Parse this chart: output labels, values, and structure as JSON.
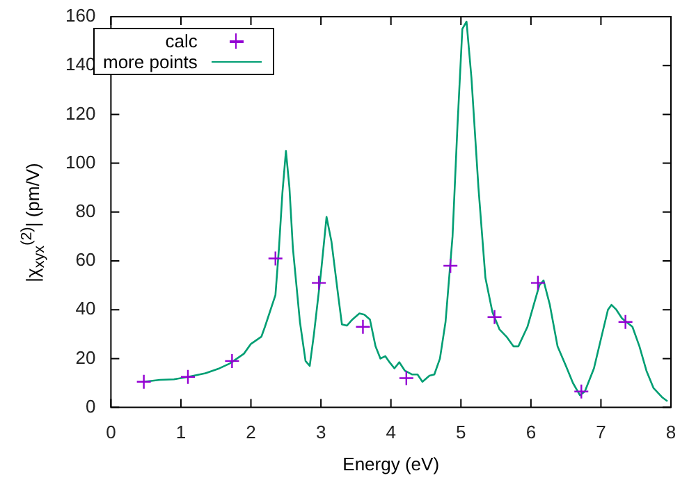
{
  "chart_data": {
    "type": "line",
    "xlabel": "Energy (eV)",
    "ylabel": "|χ$_{xyx}$$^{(2)}$| (pm/V)",
    "xlim": [
      0,
      8
    ],
    "xticks": [
      0,
      1,
      2,
      3,
      4,
      5,
      6,
      7,
      8
    ],
    "ylim": [
      0,
      160
    ],
    "yticks": [
      0,
      20,
      40,
      60,
      80,
      100,
      120,
      140,
      160
    ],
    "grid": false,
    "legend": "top left",
    "series": [
      {
        "name": "calc",
        "type": "scatter",
        "marker": "cross",
        "color": "#9400d3",
        "x": [
          0.47,
          1.1,
          1.73,
          2.35,
          2.97,
          3.6,
          4.22,
          4.85,
          5.48,
          6.1,
          6.72,
          7.35
        ],
        "values": [
          10.5,
          12.5,
          19,
          61,
          51,
          33,
          12,
          58,
          37,
          51,
          6.5,
          35
        ]
      },
      {
        "name": "more points",
        "type": "line",
        "marker": "none",
        "line_style": "solid",
        "color": "#009e73",
        "x": [
          0.47,
          0.7,
          0.9,
          1.1,
          1.35,
          1.55,
          1.7,
          1.9,
          2.0,
          2.15,
          2.2,
          2.35,
          2.4,
          2.45,
          2.5,
          2.55,
          2.6,
          2.7,
          2.78,
          2.84,
          2.9,
          3.0,
          3.08,
          3.15,
          3.25,
          3.3,
          3.37,
          3.45,
          3.55,
          3.62,
          3.7,
          3.78,
          3.85,
          3.92,
          3.98,
          4.05,
          4.12,
          4.2,
          4.3,
          4.38,
          4.45,
          4.55,
          4.62,
          4.7,
          4.78,
          4.88,
          4.95,
          5.02,
          5.08,
          5.15,
          5.25,
          5.35,
          5.45,
          5.55,
          5.65,
          5.75,
          5.82,
          5.95,
          6.05,
          6.12,
          6.18,
          6.27,
          6.38,
          6.5,
          6.6,
          6.7,
          6.77,
          6.9,
          7.0,
          7.1,
          7.15,
          7.22,
          7.3,
          7.45,
          7.55,
          7.65,
          7.75,
          7.88,
          7.95
        ],
        "values": [
          10.5,
          11.3,
          11.5,
          12.5,
          14,
          16,
          18,
          22,
          26,
          29,
          33,
          46,
          65,
          88,
          105,
          90,
          65,
          35,
          19,
          17,
          30,
          55,
          78,
          68,
          45,
          34,
          33.5,
          36,
          38.5,
          38,
          36,
          25,
          20,
          21,
          18.5,
          16,
          18.5,
          15,
          13.5,
          13.5,
          10.5,
          13,
          13.5,
          20,
          35,
          70,
          115,
          155,
          158,
          135,
          90,
          53,
          39,
          32,
          29,
          25,
          25,
          33,
          43,
          50,
          52,
          42,
          25,
          17,
          10,
          5,
          6.5,
          16,
          28,
          40,
          42,
          40,
          36.5,
          33,
          25,
          15,
          8,
          4,
          2.5
        ]
      }
    ]
  }
}
